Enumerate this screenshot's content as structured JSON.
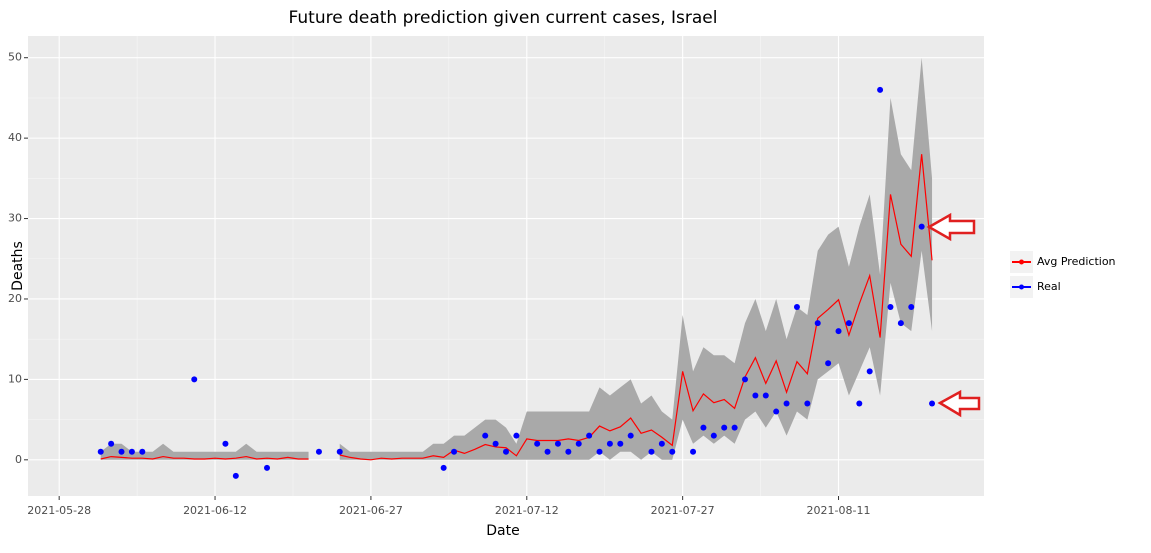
{
  "chart_data": {
    "type": "line",
    "title": "Future death prediction given current cases, Israel",
    "x_label": "Date",
    "y_label": "Deaths",
    "x": [
      "2021-06-01",
      "2021-06-02",
      "2021-06-03",
      "2021-06-04",
      "2021-06-05",
      "2021-06-06",
      "2021-06-07",
      "2021-06-08",
      "2021-06-09",
      "2021-06-10",
      "2021-06-11",
      "2021-06-12",
      "2021-06-13",
      "2021-06-14",
      "2021-06-15",
      "2021-06-16",
      "2021-06-17",
      "2021-06-18",
      "2021-06-19",
      "2021-06-20",
      "2021-06-21",
      "2021-06-22",
      "2021-06-23",
      "2021-06-24",
      "2021-06-25",
      "2021-06-26",
      "2021-06-27",
      "2021-06-28",
      "2021-06-29",
      "2021-06-30",
      "2021-07-01",
      "2021-07-02",
      "2021-07-03",
      "2021-07-04",
      "2021-07-05",
      "2021-07-06",
      "2021-07-07",
      "2021-07-08",
      "2021-07-09",
      "2021-07-10",
      "2021-07-11",
      "2021-07-12",
      "2021-07-13",
      "2021-07-14",
      "2021-07-15",
      "2021-07-16",
      "2021-07-17",
      "2021-07-18",
      "2021-07-19",
      "2021-07-20",
      "2021-07-21",
      "2021-07-22",
      "2021-07-23",
      "2021-07-24",
      "2021-07-25",
      "2021-07-26",
      "2021-07-27",
      "2021-07-28",
      "2021-07-29",
      "2021-07-30",
      "2021-07-31",
      "2021-08-01",
      "2021-08-02",
      "2021-08-03",
      "2021-08-04",
      "2021-08-05",
      "2021-08-06",
      "2021-08-07",
      "2021-08-08",
      "2021-08-09",
      "2021-08-10",
      "2021-08-11",
      "2021-08-12",
      "2021-08-13",
      "2021-08-14",
      "2021-08-15",
      "2021-08-16",
      "2021-08-17",
      "2021-08-18",
      "2021-08-19",
      "2021-08-20"
    ],
    "series": [
      {
        "name": "Avg Prediction",
        "color": "#ff0000",
        "style": "line",
        "values": [
          0.1,
          0.4,
          0.3,
          0.2,
          0.2,
          0.1,
          0.4,
          0.2,
          0.2,
          0.1,
          0.1,
          0.2,
          0.1,
          0.2,
          0.4,
          0.1,
          0.2,
          0.1,
          0.3,
          0.1,
          0.1,
          null,
          null,
          0.6,
          0.3,
          0.1,
          0.0,
          0.2,
          0.1,
          0.2,
          0.2,
          0.2,
          0.5,
          0.3,
          1.2,
          0.8,
          1.3,
          1.9,
          1.6,
          1.5,
          0.5,
          2.6,
          2.4,
          2.4,
          2.4,
          2.6,
          2.4,
          2.8,
          4.2,
          3.6,
          4.1,
          5.2,
          3.3,
          3.7,
          2.8,
          1.8,
          11.0,
          6.1,
          8.2,
          7.1,
          7.5,
          6.4,
          10.3,
          12.7,
          9.5,
          12.3,
          8.4,
          12.2,
          10.7,
          17.6,
          18.7,
          19.9,
          15.5,
          19.4,
          22.9,
          15.2,
          33,
          26.8,
          25.3,
          38,
          24.8
        ],
        "lower": [
          0,
          0,
          0,
          0,
          0,
          0,
          0,
          0,
          0,
          0,
          0,
          0,
          0,
          0,
          0,
          0,
          0,
          0,
          0,
          0,
          0,
          null,
          null,
          0,
          0,
          0,
          0,
          0,
          0,
          0,
          0,
          0,
          0,
          0,
          0,
          0,
          0,
          0,
          0,
          0,
          0,
          0,
          0,
          0,
          0,
          0,
          0,
          0,
          1,
          0,
          1,
          1,
          0,
          1,
          0,
          0,
          5,
          2,
          3,
          2,
          3,
          2,
          5,
          6,
          4,
          6,
          3,
          6,
          5,
          10,
          11,
          12,
          8,
          11,
          14,
          8,
          22,
          17,
          16,
          26,
          16
        ],
        "upper": [
          1,
          2,
          2,
          1,
          1,
          1,
          2,
          1,
          1,
          1,
          1,
          1,
          1,
          1,
          2,
          1,
          1,
          1,
          1,
          1,
          1,
          null,
          null,
          2,
          1,
          1,
          1,
          1,
          1,
          1,
          1,
          1,
          2,
          2,
          3,
          3,
          4,
          5,
          5,
          4,
          2,
          6,
          6,
          6,
          6,
          6,
          6,
          6,
          9,
          8,
          9,
          10,
          7,
          8,
          6,
          5,
          18,
          11,
          14,
          13,
          13,
          12,
          17,
          20,
          16,
          20,
          15,
          19,
          18,
          26,
          28,
          29,
          24,
          29,
          33,
          23,
          45,
          38,
          36,
          50,
          35
        ],
        "band_color": "#a9a9a9"
      },
      {
        "name": "Real",
        "color": "#0000ff",
        "style": "points",
        "values": [
          1,
          2,
          1,
          1,
          1,
          null,
          null,
          null,
          null,
          10,
          null,
          null,
          2,
          -2,
          null,
          null,
          -1,
          null,
          null,
          null,
          null,
          1,
          null,
          1,
          null,
          null,
          null,
          null,
          null,
          null,
          null,
          null,
          null,
          -1,
          1,
          null,
          null,
          3,
          2,
          1,
          3,
          null,
          2,
          1,
          2,
          1,
          2,
          3,
          1,
          2,
          2,
          3,
          null,
          1,
          2,
          1,
          null,
          1,
          4,
          3,
          4,
          4,
          10,
          8,
          8,
          6,
          7,
          19,
          7,
          17,
          12,
          16,
          17,
          7,
          11,
          46,
          19,
          17,
          19,
          29,
          7
        ]
      }
    ],
    "xlim": [
      "2021-05-25",
      "2021-08-25"
    ],
    "xticks": [
      "2021-05-28",
      "2021-06-12",
      "2021-06-27",
      "2021-07-12",
      "2021-07-27",
      "2021-08-11"
    ],
    "ylim": [
      -4.5,
      52.7
    ],
    "yticks": [
      0,
      10,
      20,
      30,
      40,
      50
    ],
    "grid": true,
    "legend": "right"
  }
}
